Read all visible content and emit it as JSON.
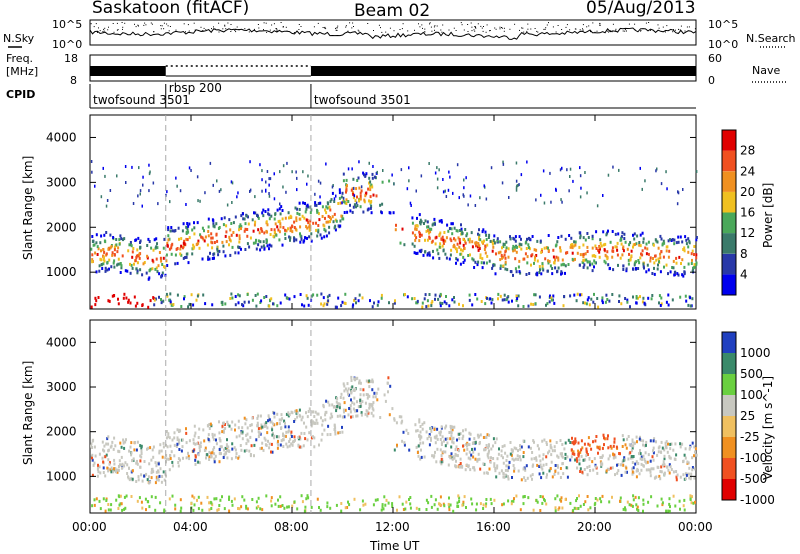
{
  "header": {
    "station": "Saskatoon (fitACF)",
    "beam": "Beam 02",
    "date": "05/Aug/2013"
  },
  "panels": {
    "nsky_label": "N.Sky",
    "nsearch_label": "N.Search",
    "freq_label_1": "Freq.",
    "freq_label_2": "[MHz]",
    "nave_label": "Nave",
    "cpid_label": "CPID",
    "noise_ticks_left": [
      "10^5",
      "10^0"
    ],
    "noise_ticks_right": [
      "10^5",
      "10^0"
    ],
    "freq_ticks": [
      "18",
      "8"
    ],
    "nave_ticks": [
      "60",
      "0"
    ]
  },
  "cpid_segments": [
    {
      "label": "twofsound 3501",
      "start_hour": 0.0
    },
    {
      "label": "rbsp 200",
      "start_hour": 3.0
    },
    {
      "label": "twofsound 3501",
      "start_hour": 8.75
    }
  ],
  "chart_data": [
    {
      "type": "heatmap",
      "title": "",
      "ylabel": "Slant Range [km]",
      "xlabel": "",
      "xlim": [
        0,
        24
      ],
      "ylim": [
        180,
        4500
      ],
      "yticks": [
        "1000",
        "2000",
        "3000",
        "4000"
      ],
      "colorbar_label": "Power [dB]",
      "colorbar_ticks": [
        "4",
        "8",
        "12",
        "16",
        "20",
        "24",
        "28"
      ],
      "colorbar_colors": [
        "#0000ee",
        "#2838a8",
        "#3a7a6a",
        "#4aa85a",
        "#f0c020",
        "#f09020",
        "#f05020",
        "#e00000"
      ],
      "features": [
        {
          "name": "main echo band",
          "start_hour": 0.0,
          "end_hour": 24.0,
          "range_km": [
            1300,
            2400
          ]
        }
      ]
    },
    {
      "type": "heatmap",
      "title": "",
      "ylabel": "Slant Range [km]",
      "xlabel": "Time UT",
      "xlim": [
        0,
        24
      ],
      "ylim": [
        180,
        4500
      ],
      "xticks": [
        "00:00",
        "04:00",
        "08:00",
        "12:00",
        "16:00",
        "20:00",
        "00:00"
      ],
      "yticks": [
        "1000",
        "2000",
        "3000",
        "4000"
      ],
      "colorbar_label": "Velocity [m s^-1]",
      "colorbar_ticks": [
        "1000",
        "500",
        "100",
        "25",
        "-25",
        "-100",
        "-500",
        "-1000"
      ],
      "colorbar_colors": [
        "#2040c0",
        "#3a8a6a",
        "#6ad040",
        "#c8c8c0",
        "#f0c060",
        "#f09020",
        "#f05020",
        "#e00000"
      ]
    }
  ]
}
